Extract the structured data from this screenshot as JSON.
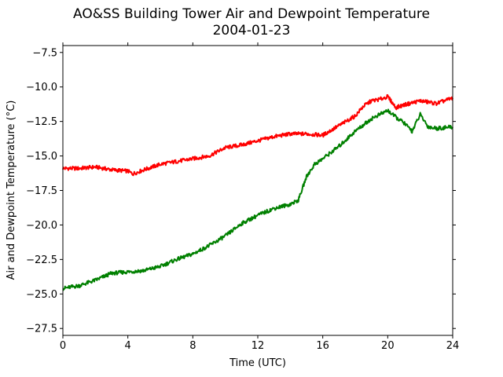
{
  "chart_data": {
    "type": "line",
    "title": "AO&SS Building Tower Air and Dewpoint Temperature",
    "subtitle": "2004-01-23",
    "xlabel": "Time (UTC)",
    "ylabel": "Air and Dewpoint Temperature (°C)",
    "xlim": [
      0,
      24
    ],
    "ylim": [
      -28,
      -7
    ],
    "xticks": [
      0,
      4,
      8,
      12,
      16,
      20,
      24
    ],
    "xtick_labels": [
      "0",
      "4",
      "8",
      "12",
      "16",
      "20",
      "24"
    ],
    "yticks": [
      -27.5,
      -25.0,
      -22.5,
      -20.0,
      -17.5,
      -15.0,
      -12.5,
      -10.0,
      -7.5
    ],
    "ytick_labels": [
      "−27.5",
      "−25.0",
      "−22.5",
      "−20.0",
      "−17.5",
      "−15.0",
      "−12.5",
      "−10.0",
      "−7.5"
    ],
    "grid": false,
    "legend": "none",
    "series": [
      {
        "color": "#ff0000",
        "x": [
          0,
          1,
          2,
          3,
          4,
          4.3,
          5,
          6,
          7,
          8,
          9,
          10,
          11,
          12,
          13,
          14,
          15,
          16,
          17,
          18,
          18.5,
          19,
          19.5,
          20,
          20.5,
          21,
          22,
          23,
          24
        ],
        "y": [
          -15.9,
          -15.9,
          -15.8,
          -16.0,
          -16.1,
          -16.3,
          -16.0,
          -15.6,
          -15.4,
          -15.2,
          -15.0,
          -14.4,
          -14.2,
          -13.9,
          -13.6,
          -13.4,
          -13.4,
          -13.5,
          -12.8,
          -12.1,
          -11.4,
          -11.0,
          -10.9,
          -10.7,
          -11.5,
          -11.3,
          -11.0,
          -11.2,
          -10.8
        ]
      },
      {
        "color": "#008000",
        "x": [
          0,
          1,
          2,
          3,
          4,
          5,
          6,
          7,
          8,
          9,
          10,
          11,
          12,
          13,
          14,
          14.5,
          15,
          15.5,
          16,
          17,
          18,
          19,
          20,
          20.5,
          21,
          21.5,
          22,
          22.5,
          23,
          24
        ],
        "y": [
          -24.6,
          -24.4,
          -24.0,
          -23.5,
          -23.4,
          -23.3,
          -23.0,
          -22.5,
          -22.1,
          -21.5,
          -20.8,
          -19.9,
          -19.3,
          -18.8,
          -18.5,
          -18.2,
          -16.5,
          -15.6,
          -15.2,
          -14.3,
          -13.2,
          -12.3,
          -11.7,
          -12.2,
          -12.6,
          -13.2,
          -12.0,
          -12.9,
          -13.0,
          -12.9
        ]
      }
    ]
  }
}
